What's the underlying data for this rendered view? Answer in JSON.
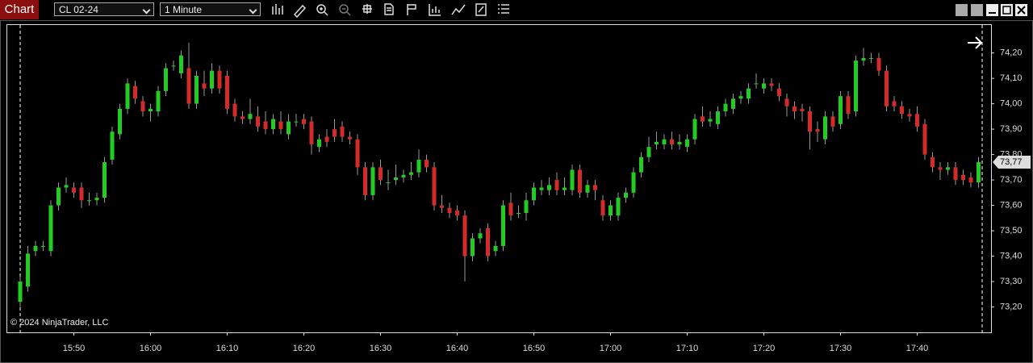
{
  "window": {
    "title": "Chart",
    "instrument": "CL 02-24",
    "interval": "1 Minute"
  },
  "chart_data": {
    "type": "candlestick",
    "copyright": "© 2024 NinjaTrader, LLC",
    "last_label": "73,77",
    "up_color": "#22cc22",
    "down_color": "#d42a2a",
    "categories": [
      null,
      null,
      null,
      null,
      null,
      null,
      null,
      "15:50",
      null,
      null,
      null,
      null,
      null,
      null,
      null,
      null,
      null,
      "16:00",
      null,
      null,
      null,
      null,
      null,
      null,
      null,
      null,
      null,
      "16:10",
      null,
      null,
      null,
      null,
      null,
      null,
      null,
      null,
      null,
      "16:20",
      null,
      null,
      null,
      null,
      null,
      null,
      null,
      null,
      null,
      "16:30",
      null,
      null,
      null,
      null,
      null,
      null,
      null,
      null,
      null,
      "16:40",
      null,
      null,
      null,
      null,
      null,
      null,
      null,
      null,
      null,
      "16:50",
      null,
      null,
      null,
      null,
      null,
      null,
      null,
      null,
      null,
      "17:00",
      null,
      null,
      null,
      null,
      null,
      null,
      null,
      null,
      null,
      "17:10",
      null,
      null,
      null,
      null,
      null,
      null,
      null,
      null,
      null,
      "17:20",
      null,
      null,
      null,
      null,
      null,
      null,
      null,
      null,
      null,
      "17:30",
      null,
      null,
      null,
      null,
      null,
      null,
      null,
      null,
      null,
      "17:40",
      null,
      null,
      null,
      null,
      null,
      null,
      null,
      null
    ],
    "open": [
      73.22,
      73.28,
      73.42,
      73.44,
      73.42,
      73.6,
      73.67,
      73.67,
      73.67,
      73.62,
      73.62,
      73.63,
      73.78,
      73.88,
      73.98,
      74.07,
      74.01,
      73.97,
      73.97,
      74.05,
      74.15,
      74.12,
      74.14,
      74.0,
      74.08,
      74.06,
      74.13,
      74.11,
      74.0,
      73.95,
      73.94,
      73.95,
      73.93,
      73.9,
      73.93,
      73.88,
      73.93,
      73.94,
      73.93,
      73.83,
      73.87,
      73.9,
      73.91,
      73.87,
      73.86,
      73.75,
      73.64,
      73.75,
      73.69,
      73.7,
      73.71,
      73.72,
      73.73,
      73.78,
      73.75,
      73.6,
      73.59,
      73.58,
      73.56,
      73.4,
      73.47,
      73.51,
      73.42,
      73.44,
      73.61,
      73.57,
      73.57,
      73.62,
      73.66,
      73.66,
      73.7,
      73.66,
      73.66,
      73.74,
      73.65,
      73.68,
      73.62,
      73.56,
      73.56,
      73.63,
      73.65,
      73.73,
      73.79,
      73.84,
      73.84,
      73.86,
      73.84,
      73.83,
      73.86,
      73.95,
      73.93,
      73.92,
      73.97,
      73.98,
      74.02,
      74.02,
      74.08,
      74.06,
      74.08,
      74.06,
      74.02,
      73.99,
      73.98,
      73.97,
      73.9,
      73.86,
      73.95,
      73.92,
      74.03,
      73.97,
      74.17,
      74.18,
      74.18,
      74.13,
      74.01,
      73.99,
      73.96,
      73.96,
      73.92,
      73.79,
      73.75,
      73.74,
      73.75,
      73.72,
      73.71,
      73.69
    ],
    "high": [
      73.32,
      73.44,
      73.46,
      73.46,
      73.62,
      73.69,
      73.71,
      73.69,
      73.69,
      73.65,
      73.65,
      73.79,
      73.91,
      74.0,
      74.1,
      74.09,
      74.03,
      74.0,
      74.07,
      74.16,
      74.17,
      74.21,
      74.24,
      74.13,
      74.13,
      74.16,
      74.15,
      74.13,
      74.02,
      73.97,
      74.02,
      73.99,
      73.97,
      73.96,
      73.97,
      73.96,
      73.96,
      73.96,
      73.95,
      73.88,
      73.9,
      73.94,
      73.93,
      73.89,
      73.88,
      73.77,
      73.77,
      73.78,
      73.74,
      73.76,
      73.74,
      73.77,
      73.82,
      73.8,
      73.77,
      73.64,
      73.61,
      73.6,
      73.58,
      73.49,
      73.51,
      73.53,
      73.46,
      73.62,
      73.65,
      73.6,
      73.65,
      73.69,
      73.7,
      73.71,
      73.73,
      73.71,
      73.76,
      73.76,
      73.7,
      73.7,
      73.64,
      73.62,
      73.65,
      73.67,
      73.75,
      73.81,
      73.87,
      73.89,
      73.88,
      73.89,
      73.88,
      73.88,
      73.96,
      73.99,
      73.97,
      73.99,
      74.02,
      74.04,
      74.05,
      74.08,
      74.12,
      74.1,
      74.1,
      74.08,
      74.04,
      74.01,
      74.0,
      73.99,
      73.93,
      73.97,
      73.97,
      74.05,
      74.05,
      74.19,
      74.22,
      74.2,
      74.2,
      74.15,
      74.03,
      74.01,
      73.98,
      73.99,
      73.94,
      73.81,
      73.77,
      73.77,
      73.77,
      73.74,
      73.73,
      73.79
    ],
    "low": [
      73.2,
      73.26,
      73.4,
      73.42,
      73.4,
      73.58,
      73.65,
      73.63,
      73.59,
      73.6,
      73.6,
      73.61,
      73.76,
      73.86,
      73.96,
      74.0,
      73.95,
      73.93,
      73.95,
      74.03,
      74.13,
      74.1,
      73.98,
      73.98,
      74.03,
      74.04,
      74.04,
      73.96,
      73.93,
      73.92,
      73.92,
      73.89,
      73.88,
      73.88,
      73.88,
      73.86,
      73.91,
      73.9,
      73.8,
      73.81,
      73.83,
      73.85,
      73.85,
      73.84,
      73.72,
      73.62,
      73.62,
      73.68,
      73.66,
      73.68,
      73.69,
      73.7,
      73.71,
      73.73,
      73.58,
      73.57,
      73.55,
      73.54,
      73.3,
      73.38,
      73.45,
      73.38,
      73.4,
      73.42,
      73.54,
      73.55,
      73.54,
      73.6,
      73.64,
      73.64,
      73.64,
      73.64,
      73.64,
      73.63,
      73.63,
      73.62,
      73.54,
      73.54,
      73.54,
      73.61,
      73.63,
      73.71,
      73.77,
      73.82,
      73.82,
      73.82,
      73.82,
      73.81,
      73.84,
      73.91,
      73.91,
      73.9,
      73.95,
      73.96,
      74.0,
      74.0,
      74.06,
      74.04,
      74.05,
      74.01,
      73.95,
      73.94,
      73.93,
      73.82,
      73.85,
      73.84,
      73.89,
      73.9,
      73.94,
      73.95,
      74.15,
      74.16,
      74.11,
      73.97,
      73.97,
      73.94,
      73.93,
      73.89,
      73.78,
      73.73,
      73.7,
      73.72,
      73.68,
      73.68,
      73.67,
      73.67
    ],
    "close": [
      73.3,
      73.41,
      73.44,
      73.44,
      73.6,
      73.67,
      73.68,
      73.65,
      73.62,
      73.62,
      73.63,
      73.77,
      73.89,
      73.98,
      74.08,
      74.02,
      73.97,
      73.98,
      74.05,
      74.14,
      74.15,
      74.19,
      74.0,
      74.11,
      74.06,
      74.13,
      74.06,
      73.98,
      73.95,
      73.94,
      73.96,
      73.91,
      73.9,
      73.94,
      73.9,
      73.93,
      73.93,
      73.92,
      73.84,
      73.86,
      73.85,
      73.87,
      73.87,
      73.86,
      73.75,
      73.64,
      73.75,
      73.7,
      73.69,
      73.71,
      73.72,
      73.73,
      73.78,
      73.75,
      73.6,
      73.59,
      73.57,
      73.56,
      73.4,
      73.47,
      73.49,
      73.4,
      73.44,
      73.6,
      73.56,
      73.57,
      73.62,
      73.67,
      73.67,
      73.68,
      73.66,
      73.67,
      73.74,
      73.65,
      73.68,
      73.66,
      73.56,
      73.6,
      73.63,
      73.65,
      73.73,
      73.79,
      73.83,
      73.85,
      73.86,
      73.84,
      73.85,
      73.86,
      73.94,
      73.93,
      73.94,
      73.97,
      74.0,
      74.02,
      74.03,
      74.06,
      74.08,
      74.08,
      74.07,
      74.03,
      73.99,
      73.97,
      73.97,
      73.89,
      73.89,
      73.95,
      73.91,
      74.03,
      73.96,
      74.17,
      74.18,
      74.18,
      74.13,
      73.99,
      73.99,
      73.96,
      73.95,
      73.91,
      73.8,
      73.75,
      73.74,
      73.75,
      73.7,
      73.7,
      73.69,
      73.77
    ],
    "ylim": [
      73.1,
      74.31
    ],
    "yticks": [
      {
        "value": 73.2,
        "label": "73,20"
      },
      {
        "value": 73.3,
        "label": "73,30"
      },
      {
        "value": 73.4,
        "label": "73,40"
      },
      {
        "value": 73.5,
        "label": "73,50"
      },
      {
        "value": 73.6,
        "label": "73,60"
      },
      {
        "value": 73.7,
        "label": "73,70"
      },
      {
        "value": 73.8,
        "label": "73,80"
      },
      {
        "value": 73.9,
        "label": "73,90"
      },
      {
        "value": 74.0,
        "label": "74,00"
      },
      {
        "value": 74.1,
        "label": "74,10"
      },
      {
        "value": 74.2,
        "label": "74,20"
      }
    ]
  }
}
